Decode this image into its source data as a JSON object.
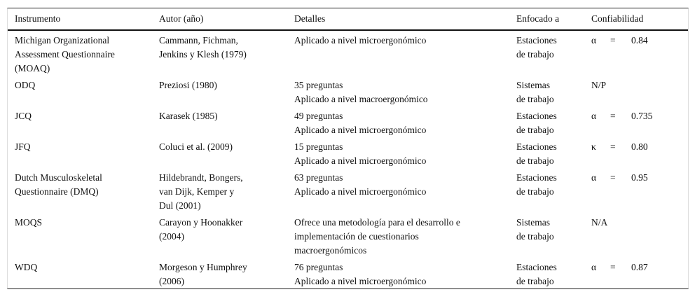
{
  "headers": [
    "Instrumento",
    "Autor (año)",
    "Detalles",
    "Enfocado a",
    "Confiabilidad"
  ],
  "rows": [
    {
      "instrumento": [
        "Michigan Organizational",
        "Assessment Questionnaire",
        "(MOAQ)"
      ],
      "autor": [
        "Cammann, Fichman,",
        "Jenkins y Klesh (1979)"
      ],
      "detalles": [
        "Aplicado a nivel microergonómico"
      ],
      "enfocado": [
        "Estaciones",
        "de trabajo"
      ],
      "conf": {
        "symbol": "α",
        "eq": "=",
        "value": "0.84"
      }
    },
    {
      "instrumento": [
        "ODQ"
      ],
      "autor": [
        "Preziosi (1980)"
      ],
      "detalles": [
        "35 preguntas",
        "Aplicado a nivel macroergonómico"
      ],
      "enfocado": [
        "Sistemas",
        "de trabajo"
      ],
      "conf": {
        "symbol": "N/P",
        "eq": "",
        "value": ""
      }
    },
    {
      "instrumento": [
        "JCQ"
      ],
      "autor": [
        "Karasek (1985)"
      ],
      "detalles": [
        "49 preguntas",
        "Aplicado a nivel microergonómico"
      ],
      "enfocado": [
        "Estaciones",
        "de trabajo"
      ],
      "conf": {
        "symbol": "α",
        "eq": "=",
        "value": "0.735"
      }
    },
    {
      "instrumento": [
        "JFQ"
      ],
      "autor": [
        "Coluci et al. (2009)"
      ],
      "detalles": [
        "15 preguntas",
        "Aplicado a nivel microergonómico"
      ],
      "enfocado": [
        "Estaciones",
        "de trabajo"
      ],
      "conf": {
        "symbol": "κ",
        "eq": "=",
        "value": "0.80"
      }
    },
    {
      "instrumento": [
        "Dutch Musculoskeletal",
        "Questionnaire (DMQ)"
      ],
      "autor": [
        "Hildebrandt, Bongers,",
        "van Dijk, Kemper y",
        "Dul (2001)"
      ],
      "detalles": [
        "63 preguntas",
        "Aplicado a nivel microergonómico"
      ],
      "enfocado": [
        "Estaciones",
        "de trabajo"
      ],
      "conf": {
        "symbol": "α",
        "eq": "=",
        "value": "0.95"
      }
    },
    {
      "instrumento": [
        "MOQS"
      ],
      "autor": [
        "Carayon y Hoonakker",
        "(2004)"
      ],
      "detalles": [
        "Ofrece una metodología para el desarrollo e",
        "implementación de cuestionarios",
        "macroergonómicos"
      ],
      "enfocado": [
        "Sistemas",
        "de trabajo"
      ],
      "conf": {
        "symbol": "N/A",
        "eq": "",
        "value": ""
      }
    },
    {
      "instrumento": [
        "WDQ"
      ],
      "autor": [
        "Morgeson y Humphrey",
        "(2006)"
      ],
      "detalles": [
        "76 preguntas",
        "Aplicado a nivel microergonómico"
      ],
      "enfocado": [
        "Estaciones",
        "de trabajo"
      ],
      "conf": {
        "symbol": "α",
        "eq": "=",
        "value": "0.87"
      }
    }
  ]
}
